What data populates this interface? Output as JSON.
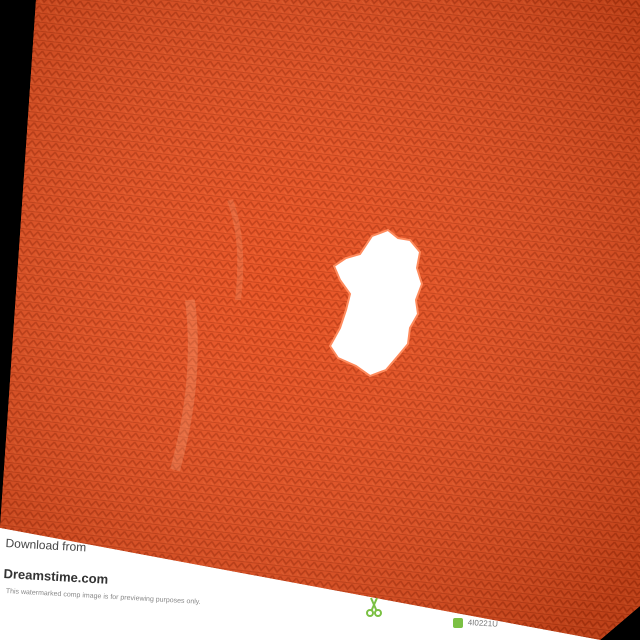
{
  "photo": {
    "subject": "orange knit fabric",
    "fabric_color": "#e9501f",
    "rib_color": "#c43a10",
    "hole_color": "#ffffff",
    "background_color": "#000000"
  },
  "watermark": {
    "download_label": "Download from",
    "brand": "Dreamstime.com",
    "url_text": "This watermarked comp image is for previewing purposes only.",
    "image_id": "4I0221U",
    "accent_color": "#7bc043",
    "icons": [
      "scissors-icon",
      "id-badge-icon"
    ]
  }
}
